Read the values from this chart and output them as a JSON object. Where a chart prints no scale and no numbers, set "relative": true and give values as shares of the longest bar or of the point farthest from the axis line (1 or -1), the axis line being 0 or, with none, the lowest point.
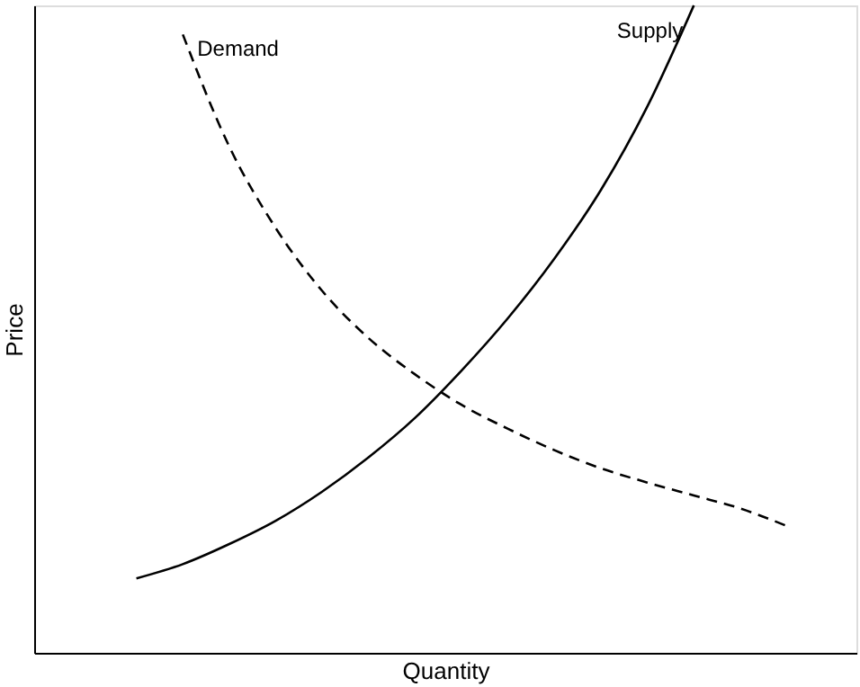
{
  "chart_data": {
    "type": "line",
    "relative": true,
    "xlabel": "Quantity",
    "ylabel": "Price",
    "categories": [
      null,
      null,
      null,
      null,
      null,
      null,
      null,
      null,
      null,
      null,
      null,
      null,
      null,
      null,
      null
    ],
    "series": [
      {
        "name": "Demand",
        "color": "#000000",
        "line_style": "dashed",
        "values": [
          null,
          0.955,
          0.782,
          0.656,
          0.559,
          0.486,
          0.43,
          0.383,
          0.346,
          0.313,
          0.285,
          0.263,
          0.243,
          0.223,
          0.196
        ]
      },
      {
        "name": "Supply",
        "color": "#000000",
        "line_style": "solid",
        "values": [
          0.115,
          0.137,
          0.168,
          0.204,
          0.249,
          0.302,
          0.363,
          0.436,
          0.517,
          0.609,
          0.715,
          0.844,
          1.0,
          null,
          null
        ]
      }
    ]
  }
}
